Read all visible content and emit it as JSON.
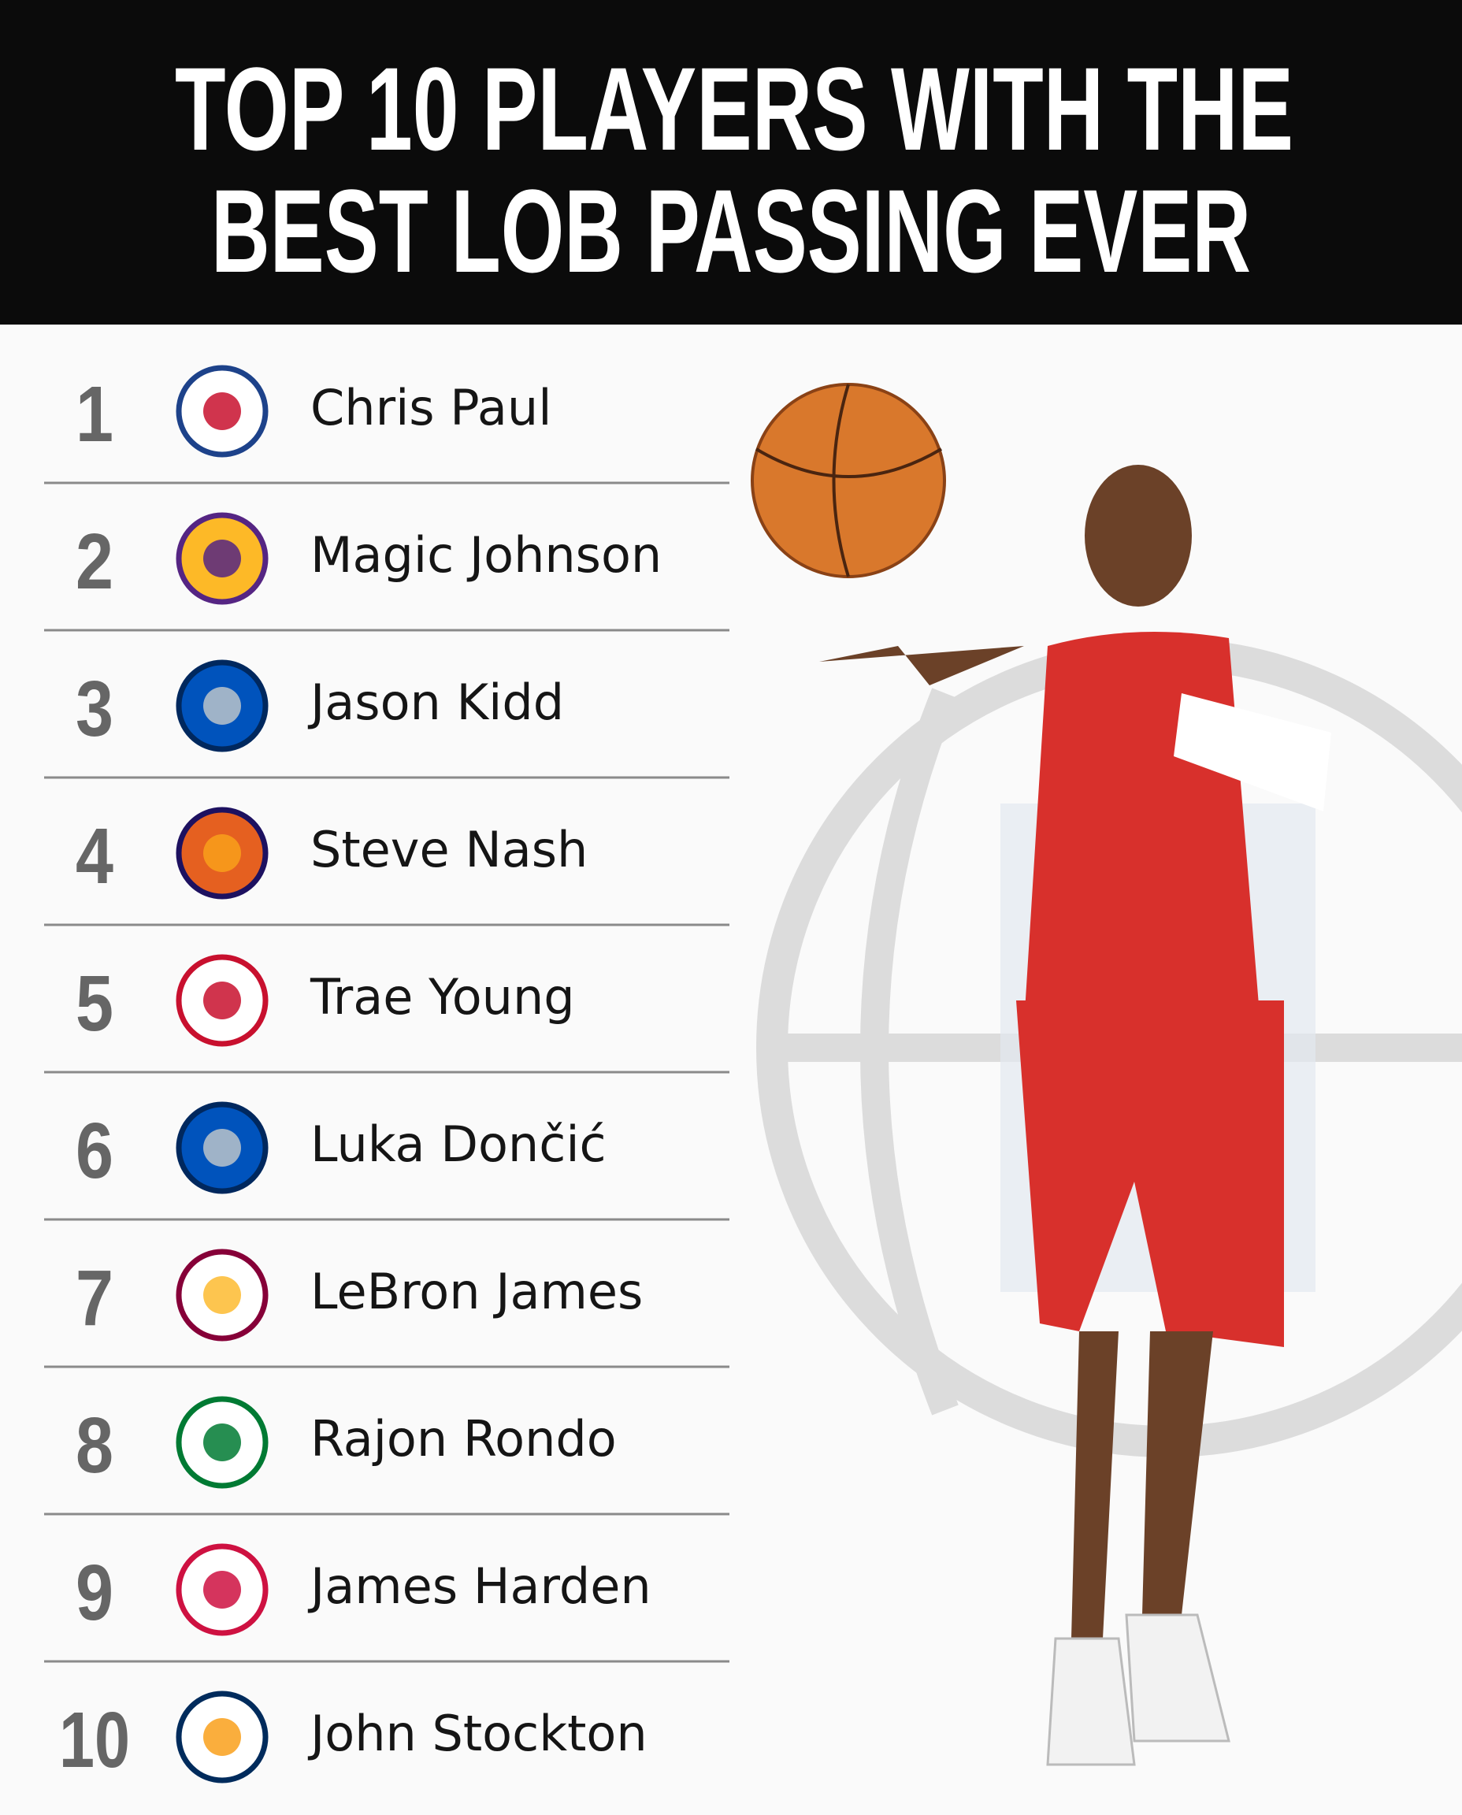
{
  "header": {
    "title_lines": [
      "TOP 10 PLAYERS WITH THE",
      "BEST LOB PASSING EVER"
    ]
  },
  "list": [
    {
      "rank": "1",
      "name": "Chris Paul"
    },
    {
      "rank": "2",
      "name": "Magic Johnson"
    },
    {
      "rank": "3",
      "name": "Jason Kidd"
    },
    {
      "rank": "4",
      "name": "Steve Nash"
    },
    {
      "rank": "5",
      "name": "Trae Young"
    },
    {
      "rank": "6",
      "name": "Luka Dončić"
    },
    {
      "rank": "7",
      "name": "LeBron James"
    },
    {
      "rank": "8",
      "name": "Rajon Rondo"
    },
    {
      "rank": "9",
      "name": "James Harden"
    },
    {
      "rank": "10",
      "name": "John Stockton"
    }
  ]
}
